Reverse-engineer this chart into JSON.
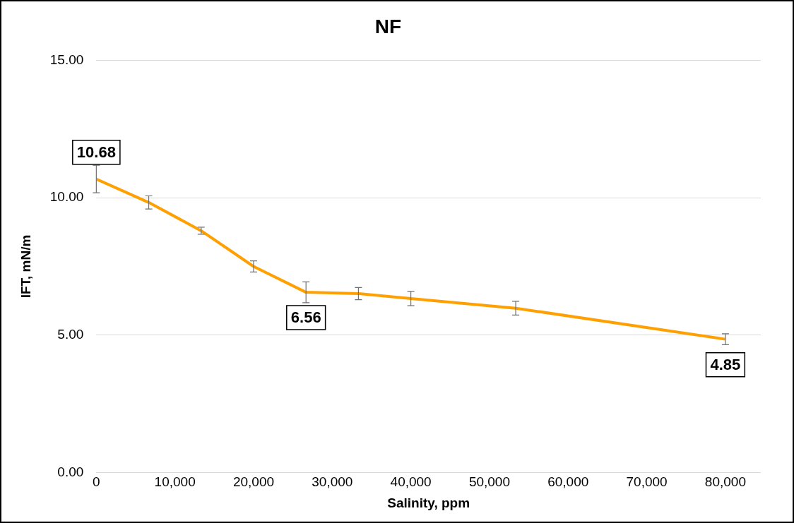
{
  "chart_data": {
    "type": "line",
    "title": "NF",
    "xlabel": "Salinity, ppm",
    "ylabel": "IFT, mN/m",
    "x": [
      0,
      6667,
      13333,
      20000,
      26667,
      33333,
      40000,
      53333,
      80000
    ],
    "series": [
      {
        "color": "#ffa000",
        "values": [
          10.68,
          9.83,
          8.8,
          7.5,
          6.56,
          6.51,
          6.33,
          5.98,
          4.85
        ],
        "errors": [
          0.5,
          0.24,
          0.13,
          0.2,
          0.38,
          0.22,
          0.26,
          0.25,
          0.2
        ],
        "value_labels": [
          "10.68",
          null,
          null,
          null,
          "6.56",
          null,
          null,
          null,
          "4.85"
        ]
      }
    ],
    "xlim": [
      0,
      84500
    ],
    "xticks": [
      0,
      {
        "value": 10000,
        "label": "10,000"
      },
      {
        "value": 20000,
        "label": "20,000"
      },
      {
        "value": 30000,
        "label": "30,000"
      },
      {
        "value": 40000,
        "label": "40,000"
      },
      {
        "value": 50000,
        "label": "50,000"
      },
      {
        "value": 60000,
        "label": "60,000"
      },
      {
        "value": 70000,
        "label": "70,000"
      },
      {
        "value": 80000,
        "label": "80,000"
      }
    ],
    "ylim": [
      0,
      15
    ],
    "yticks": [
      {
        "value": 0,
        "label": "0.00"
      },
      {
        "value": 5,
        "label": "5.00"
      },
      {
        "value": 10,
        "label": "10.00"
      },
      {
        "value": 15,
        "label": "15.00"
      }
    ],
    "grid": "y",
    "legend": false,
    "marker": "none",
    "line_style": "solid"
  }
}
